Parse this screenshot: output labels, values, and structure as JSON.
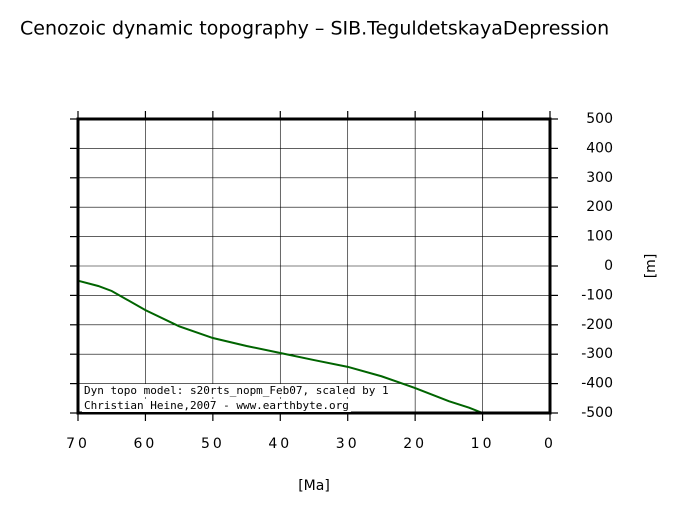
{
  "chart_data": {
    "type": "line",
    "title": "Cenozoic dynamic topography – SIB.TeguldetskayaDepression",
    "x_label": "[Ma]",
    "y_label": "[m]",
    "x": [
      70,
      67,
      65,
      60,
      55,
      50,
      45,
      40,
      35,
      30,
      25,
      20,
      15,
      12,
      10
    ],
    "series": [
      {
        "name": "Dyn topo",
        "color": "#006400",
        "values": [
          -50,
          -68,
          -85,
          -150,
          -205,
          -245,
          -272,
          -296,
          -320,
          -343,
          -375,
          -415,
          -460,
          -482,
          -500
        ]
      }
    ],
    "xlim": [
      70,
      0
    ],
    "xticks": [
      70,
      60,
      50,
      40,
      30,
      20,
      10,
      0
    ],
    "ylim": [
      -500,
      500
    ],
    "yticks": [
      -500,
      -400,
      -300,
      -200,
      -100,
      0,
      100,
      200,
      300,
      400,
      500
    ],
    "grid": true,
    "annotations": [
      "Dyn topo model: s20rts_nopm_Feb07, scaled by 1",
      "Christian Heine,2007 - www.earthbyte.org"
    ]
  }
}
